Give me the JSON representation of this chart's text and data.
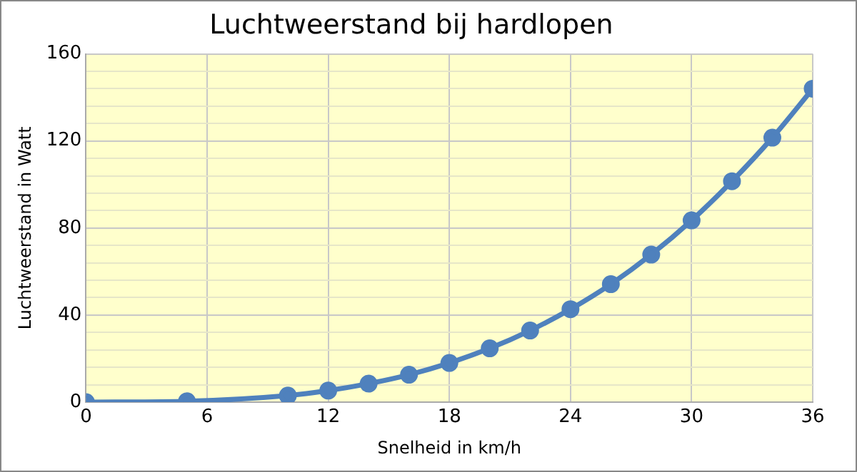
{
  "chart_data": {
    "type": "line",
    "title": "Luchtweerstand bij hardlopen",
    "xlabel": "Snelheid in km/h",
    "ylabel": "Luchtweerstand in Watt",
    "x": [
      0,
      5,
      10,
      12,
      14,
      16,
      18,
      20,
      22,
      24,
      26,
      28,
      30,
      32,
      34,
      36
    ],
    "series": [
      {
        "color": "#4f81bd",
        "values": [
          0,
          0.4,
          3,
          5.3,
          8.5,
          12.6,
          18,
          24.7,
          32.9,
          42.7,
          54.2,
          67.8,
          83.5,
          101.5,
          121.5,
          144
        ]
      }
    ],
    "xlim": [
      0,
      36
    ],
    "xticks": [
      0,
      6,
      12,
      18,
      24,
      30,
      36
    ],
    "ylim": [
      0,
      160
    ],
    "yticks": [
      0,
      {
        "value": 8,
        "label": null
      },
      {
        "value": 16,
        "label": null
      },
      {
        "value": 24,
        "label": null
      },
      {
        "value": 32,
        "label": null
      },
      40,
      {
        "value": 48,
        "label": null
      },
      {
        "value": 56,
        "label": null
      },
      {
        "value": 64,
        "label": null
      },
      {
        "value": 72,
        "label": null
      },
      80,
      {
        "value": 88,
        "label": null
      },
      {
        "value": 96,
        "label": null
      },
      {
        "value": 104,
        "label": null
      },
      {
        "value": 112,
        "label": null
      },
      120,
      {
        "value": 128,
        "label": null
      },
      {
        "value": 136,
        "label": null
      },
      {
        "value": 144,
        "label": null
      },
      {
        "value": 152,
        "label": null
      },
      160
    ],
    "grid": true,
    "legend": false,
    "marker": "circle",
    "line_style": "solid"
  }
}
